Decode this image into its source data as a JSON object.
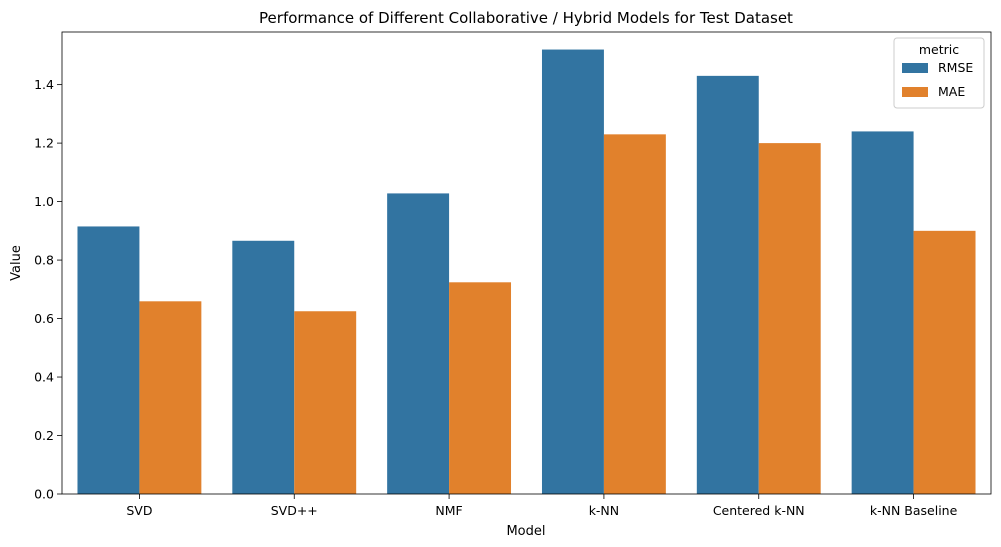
{
  "chart_data": {
    "type": "bar",
    "title": "Performance of Different Collaborative / Hybrid Models for Test Dataset",
    "xlabel": "Model",
    "ylabel": "Value",
    "categories": [
      "SVD",
      "SVD++",
      "NMF",
      "k-NN",
      "Centered k-NN",
      "k-NN Baseline"
    ],
    "series": [
      {
        "name": "RMSE",
        "color": "#3274a1",
        "values": [
          0.915,
          0.866,
          1.028,
          1.52,
          1.43,
          1.24
        ]
      },
      {
        "name": "MAE",
        "color": "#e1812c",
        "values": [
          0.659,
          0.625,
          0.724,
          1.23,
          1.2,
          0.9
        ]
      }
    ],
    "ylim": [
      0,
      1.58
    ],
    "yticks": [
      "0.0",
      "0.2",
      "0.4",
      "0.6",
      "0.8",
      "1.0",
      "1.2",
      "1.4"
    ],
    "legend": {
      "title": "metric",
      "position": "top-right"
    },
    "grid": false
  }
}
